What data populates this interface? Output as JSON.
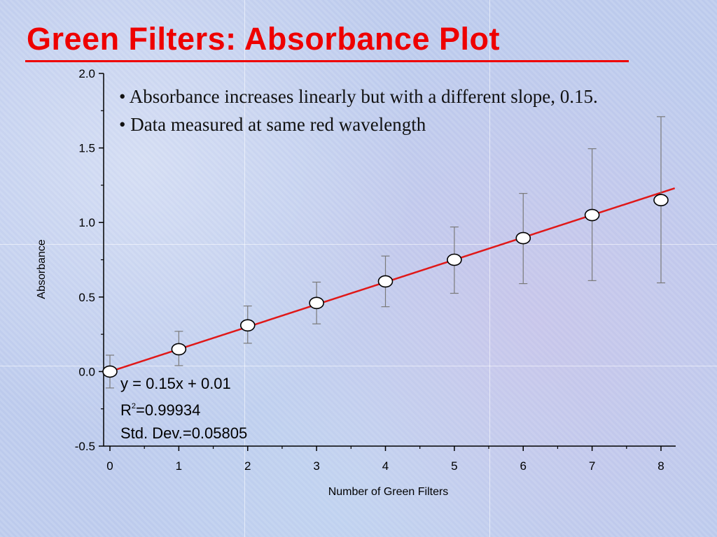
{
  "slide": {
    "title": "Green Filters: Absorbance Plot",
    "bullets": [
      "Absorbance increases linearly but with a different slope, 0.15.",
      "Data measured at same red wavelength"
    ],
    "bullet_symbol": "•"
  },
  "fit_box": {
    "equation": "y = 0.15x + 0.01",
    "r2_label": "R",
    "r2_exp": "2",
    "r2_value": "=0.99934",
    "std_dev": "Std. Dev.=0.05805"
  },
  "colors": {
    "title": "#ee0000",
    "fit_line": "#e01818",
    "axis": "#000000",
    "error_bar": "#7a7a7a",
    "marker_fill": "#ffffff"
  },
  "chart_data": {
    "type": "scatter",
    "title": "",
    "xlabel": "Number of Green Filters",
    "ylabel": "Absorbance",
    "xlim": [
      0,
      8
    ],
    "ylim": [
      -0.5,
      2.0
    ],
    "x_ticks": [
      0,
      1,
      2,
      3,
      4,
      5,
      6,
      7,
      8
    ],
    "y_ticks": [
      -0.5,
      0.0,
      0.5,
      1.0,
      1.5,
      2.0
    ],
    "y_tick_labels": [
      "-0.5",
      "0.0",
      "0.5",
      "1.0",
      "1.5",
      "2.0"
    ],
    "series": [
      {
        "type": "scatter",
        "x": [
          0,
          1,
          2,
          3,
          4,
          5,
          6,
          7,
          8
        ],
        "y": [
          0.0,
          0.15,
          0.31,
          0.46,
          0.605,
          0.75,
          0.895,
          1.05,
          1.15
        ],
        "error_low": [
          -0.11,
          0.04,
          0.19,
          0.32,
          0.435,
          0.525,
          0.59,
          0.61,
          0.595
        ],
        "error_high": [
          0.11,
          0.27,
          0.44,
          0.6,
          0.775,
          0.97,
          1.195,
          1.495,
          1.71
        ]
      },
      {
        "type": "line",
        "x": [
          0,
          8.2
        ],
        "y": [
          0.0,
          1.23
        ]
      }
    ],
    "fit": {
      "slope": 0.15,
      "intercept": 0.01
    },
    "grid": false,
    "legend": "none"
  }
}
